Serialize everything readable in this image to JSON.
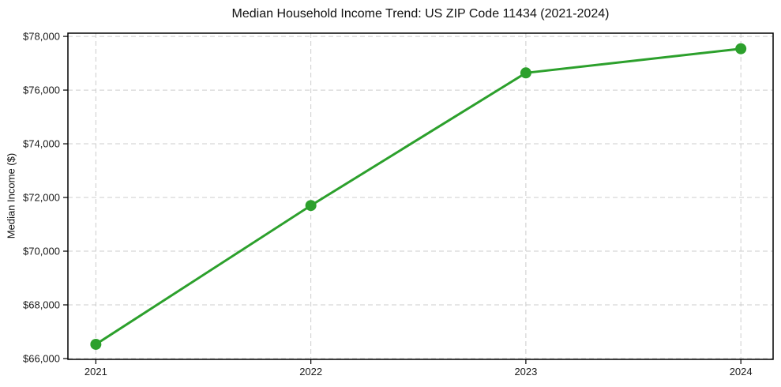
{
  "chart_data": {
    "type": "line",
    "title": "Median Household Income Trend: US ZIP Code 11434 (2021-2024)",
    "xlabel": "",
    "ylabel": "Median Income ($)",
    "series_name": "median-household-income",
    "x": [
      2021,
      2022,
      2023,
      2024
    ],
    "x_labels": [
      "2021",
      "2022",
      "2023",
      "2024"
    ],
    "values": [
      66530,
      71700,
      76640,
      77540
    ],
    "yticks": [
      {
        "value": 66000,
        "label": "$66,000"
      },
      {
        "value": 68000,
        "label": "$68,000"
      },
      {
        "value": 70000,
        "label": "$70,000"
      },
      {
        "value": 72000,
        "label": "$72,000"
      },
      {
        "value": 74000,
        "label": "$74,000"
      },
      {
        "value": 76000,
        "label": "$76,000"
      },
      {
        "value": 78000,
        "label": "$78,000"
      }
    ],
    "ylim": [
      65970,
      78120
    ],
    "xlim": [
      2020.87,
      2024.15
    ],
    "grid": true,
    "grid_style": "dashed",
    "legend_position": "none",
    "colors": {
      "line": "#2ca02c",
      "marker": "#2ca02c",
      "grid": "#cccccc",
      "spine": "#000000",
      "text": "#1a1a1a"
    },
    "marker": "circle",
    "marker_radius": 7,
    "line_width": 3
  }
}
